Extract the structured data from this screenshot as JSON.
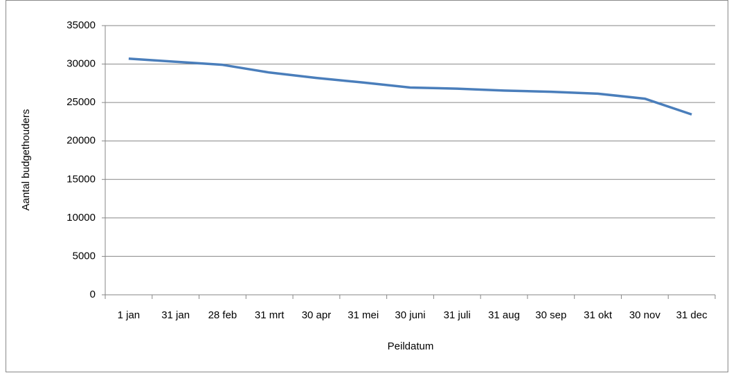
{
  "chart_data": {
    "type": "line",
    "x_label": "Peildatum",
    "y_label": "Aantal budgethouders",
    "categories": [
      "1 jan",
      "31 jan",
      "28 feb",
      "31 mrt",
      "30 apr",
      "31 mei",
      "30 juni",
      "31 juli",
      "31 aug",
      "30 sep",
      "31 okt",
      "30 nov",
      "31 dec"
    ],
    "series": [
      {
        "color": "#4a7ebb",
        "values": [
          30700,
          30300,
          29900,
          28900,
          28200,
          27600,
          26950,
          26800,
          26550,
          26400,
          26150,
          25500,
          23450
        ]
      }
    ],
    "ylim": [
      0,
      35000
    ],
    "yticks": [
      0,
      5000,
      10000,
      15000,
      20000,
      25000,
      30000,
      35000
    ],
    "grid": true
  }
}
